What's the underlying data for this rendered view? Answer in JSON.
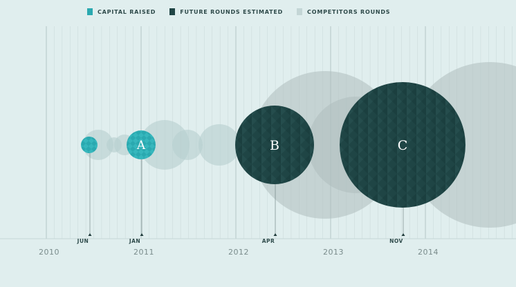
{
  "legend": [
    {
      "label": "CAPITAL RAISED",
      "color": "#2aa9b0"
    },
    {
      "label": "FUTURE ROUNDS ESTIMATED",
      "color": "#1f4545"
    },
    {
      "label": "COMPETITORS ROUNDS",
      "color": "#c4d6d6"
    }
  ],
  "colors": {
    "background": "#e0eeee",
    "capital": "#2aa9b0",
    "future": "#1f4545",
    "competitor": "#b6cfcf",
    "competitor_dark": "#aebebe",
    "axis_text": "#7a8c8c",
    "grid": "#c8d8d8",
    "grid_major": "#b4c6c6"
  },
  "years": [
    "2010",
    "2011",
    "2012",
    "2013",
    "2014"
  ],
  "rounds": [
    {
      "letter": "",
      "month": "JUN",
      "kind": "capital"
    },
    {
      "letter": "A",
      "month": "JAN",
      "kind": "capital"
    },
    {
      "letter": "B",
      "month": "APR",
      "kind": "future"
    },
    {
      "letter": "C",
      "month": "NOV",
      "kind": "future"
    }
  ]
}
